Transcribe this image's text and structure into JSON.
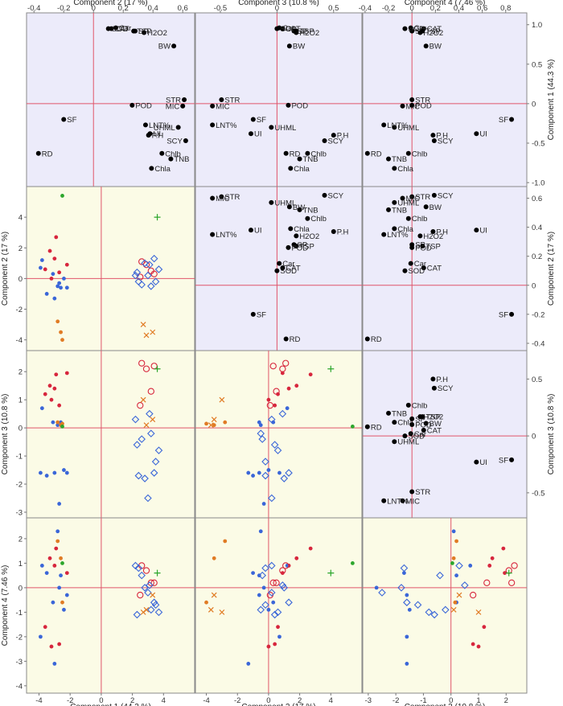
{
  "colors": {
    "loading_bg": "#ecebfa",
    "score_bg": "#fbfbe6",
    "ref_line": "#e0556a",
    "frame": "#8a8a8a",
    "point": "#000000",
    "group_red": "#d7263d",
    "group_blue": "#3a66d8",
    "group_orange": "#e07b24",
    "group_green": "#2ca62c"
  },
  "axis_titles": {
    "top": [
      "Component 2  (17 %)",
      "Component 3  (10.8 %)",
      "Component 4  (7.46 %)"
    ],
    "bottom": [
      "Component 1  (44.3 %)",
      "Component 2  (17 %)",
      "Component 3  (10.8 %)"
    ],
    "left": [
      "Component 2  (17 %)",
      "Component 3  (10.8 %)",
      "Component 4  (7.46 %)"
    ],
    "right": [
      "Component 1  (44.3 %)",
      "Component 2  (17 %)",
      "Component 3  (10.8 %)"
    ]
  },
  "chart_data": {
    "type": "scatter",
    "description_type": "scatterplot-matrix",
    "components": [
      {
        "name": "Component 1",
        "variance": "44.3 %"
      },
      {
        "name": "Component 2",
        "variance": "17 %"
      },
      {
        "name": "Component 3",
        "variance": "10.8 %"
      },
      {
        "name": "Component 4",
        "variance": "7.46 %"
      }
    ],
    "axes": {
      "load1": {
        "range": [
          -1.05,
          1.15
        ],
        "ticks": [
          1.0,
          0.5,
          0,
          -0.5,
          -1.0
        ],
        "tick_labels": [
          "1.0",
          "0.5",
          "0",
          "-0.5",
          "-1.0"
        ]
      },
      "load2": {
        "range": [
          -0.45,
          0.68
        ],
        "ticks": [
          0.6,
          0.4,
          0.2,
          0,
          -0.2,
          -0.4
        ],
        "tick_labels": [
          "0.6",
          "0.4",
          "0.2",
          "0",
          "-0.2",
          "-0.4"
        ]
      },
      "load3": {
        "range": [
          -0.72,
          0.75
        ],
        "ticks": [
          0.5,
          0,
          -0.5
        ],
        "tick_labels": [
          "0.5",
          "0",
          "-0.5"
        ]
      },
      "top2": {
        "range": [
          -0.45,
          0.68
        ],
        "ticks": [
          -0.4,
          -0.2,
          0,
          0.2,
          0.4,
          0.6
        ],
        "tick_labels": [
          "-0.4",
          "-0.2",
          "0",
          "0.2",
          "0.4",
          "0.6"
        ]
      },
      "top3": {
        "range": [
          -0.72,
          0.75
        ],
        "ticks": [
          -0.5,
          0,
          0.5
        ],
        "tick_labels": [
          "-0.5",
          "0",
          "0.5"
        ]
      },
      "top4": {
        "range": [
          -0.42,
          0.98
        ],
        "ticks": [
          -0.4,
          -0.2,
          0,
          0.2,
          0.4,
          0.6,
          0.8
        ],
        "tick_labels": [
          "-0.4",
          "-0.2",
          "0",
          "0.2",
          "0.4",
          "0.6",
          "0.8"
        ]
      },
      "sc1": {
        "range": [
          -4.8,
          6.0
        ],
        "ticks": [
          -4,
          -2,
          0,
          2,
          4
        ],
        "tick_labels": [
          "-4",
          "-2",
          "0",
          "2",
          "4"
        ]
      },
      "sc2": {
        "range": [
          -4.7,
          6.0
        ],
        "ticks": [
          -4,
          -2,
          0,
          2,
          4
        ],
        "tick_labels": [
          "-4",
          "-2",
          "0",
          "2",
          "4"
        ]
      },
      "sc3": {
        "range": [
          -3.2,
          2.75
        ],
        "ticks": [
          -3,
          -2,
          -1,
          0,
          1,
          2
        ],
        "tick_labels": [
          "-3",
          "-2",
          "-1",
          "0",
          "1",
          "2"
        ]
      },
      "sc4": {
        "range": [
          -4.3,
          2.85
        ],
        "ticks": [
          -4,
          -3,
          -2,
          -1,
          0,
          1,
          2
        ],
        "tick_labels": [
          "-4",
          "-3",
          "-2",
          "-1",
          "0",
          "1",
          "2"
        ]
      }
    },
    "variables": [
      {
        "name": "CAT",
        "c1": 0.95,
        "c2": 0.12,
        "c3": 0.05,
        "c4": 0.1
      },
      {
        "name": "Car",
        "c1": 0.96,
        "c2": 0.15,
        "c3": 0.02,
        "c4": -0.01
      },
      {
        "name": "SP",
        "c1": 0.92,
        "c2": 0.28,
        "c3": 0.15,
        "c4": 0.0
      },
      {
        "name": "H2O2",
        "c1": 0.9,
        "c2": 0.34,
        "c3": 0.17,
        "c4": 0.07
      },
      {
        "name": "SOD",
        "c1": 0.95,
        "c2": 0.1,
        "c3": 0.0,
        "c4": -0.06
      },
      {
        "name": "TSP",
        "c1": 0.92,
        "c2": 0.27,
        "c3": 0.17,
        "c4": 0.09
      },
      {
        "name": "BW",
        "c1": 0.73,
        "c2": 0.54,
        "c3": 0.11,
        "c4": 0.12
      },
      {
        "name": "STR",
        "c1": 0.05,
        "c2": 0.61,
        "c3": -0.49,
        "c4": 0.0
      },
      {
        "name": "MIC",
        "c1": -0.03,
        "c2": 0.6,
        "c3": -0.57,
        "c4": -0.08
      },
      {
        "name": "UHML",
        "c1": -0.3,
        "c2": 0.57,
        "c3": -0.05,
        "c4": -0.15
      },
      {
        "name": "LNT%",
        "c1": -0.27,
        "c2": 0.35,
        "c3": -0.57,
        "c4": -0.24
      },
      {
        "name": "SF",
        "c1": -0.2,
        "c2": -0.2,
        "c3": -0.21,
        "c4": 0.85
      },
      {
        "name": "UI",
        "c1": -0.38,
        "c2": 0.38,
        "c3": -0.23,
        "c4": 0.55
      },
      {
        "name": "P.H",
        "c1": -0.4,
        "c2": 0.37,
        "c3": 0.5,
        "c4": 0.18
      },
      {
        "name": "SCY",
        "c1": -0.47,
        "c2": 0.62,
        "c3": 0.42,
        "c4": 0.19
      },
      {
        "name": "RD",
        "c1": -0.63,
        "c2": -0.37,
        "c3": 0.08,
        "c4": -0.38
      },
      {
        "name": "Chlb",
        "c1": -0.63,
        "c2": 0.46,
        "c3": 0.27,
        "c4": -0.03
      },
      {
        "name": "TNB",
        "c1": -0.7,
        "c2": 0.52,
        "c3": 0.2,
        "c4": -0.2
      },
      {
        "name": "Chla",
        "c1": -0.82,
        "c2": 0.39,
        "c3": 0.12,
        "c4": -0.15
      },
      {
        "name": "POD",
        "c1": -0.02,
        "c2": 0.26,
        "c3": 0.1,
        "c4": 0.0
      }
    ],
    "observations": [
      {
        "g": "red",
        "m": "dot",
        "c1": -2.9,
        "c2": 2.7,
        "c3": 1.9,
        "c4": 1.6
      },
      {
        "g": "red",
        "m": "dot",
        "c1": -3.3,
        "c2": 1.8,
        "c3": 1.5,
        "c4": 1.2
      },
      {
        "g": "red",
        "m": "dot",
        "c1": -3.0,
        "c2": 1.3,
        "c3": 1.4,
        "c4": 0.9
      },
      {
        "g": "red",
        "m": "dot",
        "c1": -3.6,
        "c2": 0.6,
        "c3": 1.2,
        "c4": -1.6
      },
      {
        "g": "red",
        "m": "dot",
        "c1": -2.7,
        "c2": 0.4,
        "c3": 0.8,
        "c4": -2.3
      },
      {
        "g": "red",
        "m": "dot",
        "c1": -3.2,
        "c2": 0.0,
        "c3": 1.0,
        "c4": -2.4
      },
      {
        "g": "red",
        "m": "dot",
        "c1": -2.2,
        "c2": 0.9,
        "c3": 1.95,
        "c4": 0.6
      },
      {
        "g": "blue",
        "m": "dot",
        "c1": -3.8,
        "c2": 1.2,
        "c3": 0.7,
        "c4": 0.9
      },
      {
        "g": "blue",
        "m": "dot",
        "c1": -3.9,
        "c2": 0.7,
        "c3": -1.6,
        "c4": -2.0
      },
      {
        "g": "blue",
        "m": "dot",
        "c1": -3.5,
        "c2": -1.0,
        "c3": -1.7,
        "c4": 0.6
      },
      {
        "g": "blue",
        "m": "dot",
        "c1": -3.0,
        "c2": -1.3,
        "c3": -1.6,
        "c4": -3.1
      },
      {
        "g": "blue",
        "m": "dot",
        "c1": -2.7,
        "c2": -0.3,
        "c3": -2.7,
        "c4": 0.0
      },
      {
        "g": "blue",
        "m": "dot",
        "c1": -2.6,
        "c2": -0.6,
        "c3": 0.2,
        "c4": 0.5
      },
      {
        "g": "blue",
        "m": "dot",
        "c1": -2.4,
        "c2": 0.0,
        "c3": -1.5,
        "c4": -0.9
      },
      {
        "g": "blue",
        "m": "dot",
        "c1": -2.8,
        "c2": -0.5,
        "c3": 0.1,
        "c4": 2.3
      },
      {
        "g": "blue",
        "m": "dot",
        "c1": -2.2,
        "c2": -0.6,
        "c3": -1.6,
        "c4": -0.3
      },
      {
        "g": "blue",
        "m": "dot",
        "c1": -3.1,
        "c2": 0.3,
        "c3": 0.2,
        "c4": -0.6
      },
      {
        "g": "orange",
        "m": "dot",
        "c1": -2.8,
        "c2": -2.8,
        "c3": 0.2,
        "c4": 1.9
      },
      {
        "g": "orange",
        "m": "dot",
        "c1": -2.6,
        "c2": -3.5,
        "c3": 0.1,
        "c4": 1.2
      },
      {
        "g": "orange",
        "m": "dot",
        "c1": -2.5,
        "c2": -4.0,
        "c3": 0.15,
        "c4": -0.6
      },
      {
        "g": "green",
        "m": "dot",
        "c1": -2.5,
        "c2": 5.4,
        "c3": 0.05,
        "c4": 1.0
      },
      {
        "g": "red",
        "m": "circle",
        "c1": 2.6,
        "c2": 1.1,
        "c3": 2.3,
        "c4": 0.9
      },
      {
        "g": "red",
        "m": "circle",
        "c1": 2.9,
        "c2": 0.9,
        "c3": 2.1,
        "c4": 0.7
      },
      {
        "g": "red",
        "m": "circle",
        "c1": 3.2,
        "c2": 0.5,
        "c3": 1.3,
        "c4": 0.2
      },
      {
        "g": "red",
        "m": "circle",
        "c1": 2.5,
        "c2": 0.1,
        "c3": 0.8,
        "c4": -0.3
      },
      {
        "g": "red",
        "m": "circle",
        "c1": 3.4,
        "c2": 0.3,
        "c3": 2.2,
        "c4": 0.2
      },
      {
        "g": "blue",
        "m": "diamond",
        "c1": 2.2,
        "c2": 0.2,
        "c3": 0.3,
        "c4": 0.9
      },
      {
        "g": "blue",
        "m": "diamond",
        "c1": 2.6,
        "c2": -0.4,
        "c3": -0.4,
        "c4": 0.5
      },
      {
        "g": "blue",
        "m": "diamond",
        "c1": 3.1,
        "c2": 0.9,
        "c3": 0.5,
        "c4": 0.1
      },
      {
        "g": "blue",
        "m": "diamond",
        "c1": 3.4,
        "c2": 1.3,
        "c3": -1.6,
        "c4": -0.6
      },
      {
        "g": "blue",
        "m": "diamond",
        "c1": 3.7,
        "c2": 0.6,
        "c3": -0.8,
        "c4": -1.0
      },
      {
        "g": "blue",
        "m": "diamond",
        "c1": 2.4,
        "c2": -0.2,
        "c3": -1.7,
        "c4": 0.8
      },
      {
        "g": "blue",
        "m": "diamond",
        "c1": 3.0,
        "c2": 0.2,
        "c3": -2.5,
        "c4": -0.2
      },
      {
        "g": "blue",
        "m": "diamond",
        "c1": 3.5,
        "c2": -0.2,
        "c3": -1.2,
        "c4": -0.7
      },
      {
        "g": "blue",
        "m": "diamond",
        "c1": 2.3,
        "c2": 0.4,
        "c3": -0.6,
        "c4": -1.1
      },
      {
        "g": "blue",
        "m": "diamond",
        "c1": 2.8,
        "c2": 1.0,
        "c3": -1.8,
        "c4": 0.0
      },
      {
        "g": "blue",
        "m": "diamond",
        "c1": 3.2,
        "c2": -0.5,
        "c3": -0.2,
        "c4": -0.9
      },
      {
        "g": "orange",
        "m": "cross",
        "c1": 2.7,
        "c2": -3.0,
        "c3": 1.0,
        "c4": -1.0
      },
      {
        "g": "orange",
        "m": "cross",
        "c1": 3.3,
        "c2": -3.5,
        "c3": 0.3,
        "c4": -0.3
      },
      {
        "g": "orange",
        "m": "cross",
        "c1": 2.9,
        "c2": -3.7,
        "c3": 0.1,
        "c4": -0.9
      },
      {
        "g": "green",
        "m": "plus",
        "c1": 3.6,
        "c2": 4.0,
        "c3": 2.1,
        "c4": 0.6
      }
    ]
  }
}
